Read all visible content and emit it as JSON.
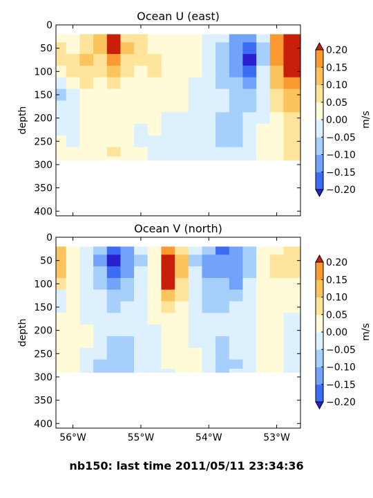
{
  "footer": "nb150: last time 2011/05/11 23:34:36",
  "colorbar": {
    "label": "m/s",
    "ticks": [
      "0.20",
      "0.15",
      "0.10",
      "0.05",
      "0.00",
      "−0.05",
      "−0.10",
      "−0.15",
      "−0.20"
    ],
    "levels": [
      -0.2,
      -0.15,
      -0.1,
      -0.05,
      0.0,
      0.05,
      0.1,
      0.15,
      0.2
    ],
    "colors": [
      "#2a1fd0",
      "#3c6cf4",
      "#71a3fb",
      "#a7cffc",
      "#ddf0fd",
      "#fffbd8",
      "#fde49a",
      "#fcc45c",
      "#fb9a31",
      "#e8511b",
      "#c81f0a"
    ],
    "extend_low_color": "#2a1fd0",
    "extend_high_color": "#c81f0a"
  },
  "chart_data": [
    {
      "type": "heatmap",
      "title": "Ocean U (east)",
      "ylabel": "depth",
      "xlabel": "",
      "xlim": [
        -56.25,
        -52.65
      ],
      "ylim": [
        410,
        0
      ],
      "xticks": [
        -56,
        -55,
        -54,
        -53
      ],
      "xtick_labels": [
        "56°W",
        "55°W",
        "54°W",
        "53°W"
      ],
      "yticks": [
        0,
        50,
        100,
        150,
        200,
        250,
        300,
        350,
        400
      ],
      "ytick_labels": [
        "0",
        "50",
        "100",
        "150",
        "200",
        "250",
        "300",
        "350",
        "400"
      ],
      "show_xticklabels": false,
      "depth_levels": [
        25,
        50,
        75,
        100,
        125,
        150,
        175,
        200,
        225,
        250,
        275,
        290
      ],
      "longitudes": [
        -56.2,
        -56.0,
        -55.8,
        -55.6,
        -55.4,
        -55.2,
        -55.0,
        -54.8,
        -54.6,
        -54.4,
        -54.2,
        -54.0,
        -53.8,
        -53.6,
        -53.4,
        -53.2,
        -53.0,
        -52.8
      ],
      "values": [
        [
          0.02,
          0.0,
          0.05,
          0.1,
          0.2,
          0.08,
          0.05,
          0.03,
          0.02,
          0.02,
          0.0,
          -0.05,
          -0.05,
          -0.12,
          -0.15,
          -0.05,
          0.15,
          0.22
        ],
        [
          0.05,
          0.03,
          0.08,
          0.12,
          0.22,
          0.1,
          0.05,
          0.04,
          0.03,
          0.02,
          0.0,
          -0.05,
          -0.08,
          -0.15,
          -0.2,
          -0.08,
          0.18,
          0.22
        ],
        [
          0.05,
          0.08,
          0.1,
          0.08,
          0.15,
          0.08,
          0.05,
          0.06,
          0.04,
          0.03,
          0.0,
          -0.03,
          -0.08,
          -0.12,
          -0.22,
          -0.08,
          0.15,
          0.22
        ],
        [
          0.02,
          0.05,
          0.08,
          0.05,
          0.1,
          0.05,
          0.03,
          0.08,
          0.03,
          0.02,
          0.0,
          -0.03,
          -0.1,
          -0.12,
          -0.18,
          -0.05,
          0.12,
          0.2
        ],
        [
          -0.05,
          0.02,
          0.05,
          0.02,
          0.05,
          0.03,
          0.02,
          0.04,
          0.02,
          0.0,
          -0.02,
          -0.05,
          -0.08,
          -0.1,
          -0.12,
          -0.03,
          0.1,
          0.15
        ],
        [
          -0.08,
          -0.03,
          0.02,
          0.0,
          0.02,
          0.03,
          0.02,
          0.02,
          0.01,
          0.0,
          -0.02,
          -0.03,
          -0.05,
          -0.1,
          -0.08,
          -0.02,
          0.08,
          0.12
        ],
        [
          -0.05,
          -0.02,
          0.02,
          0.01,
          0.03,
          0.02,
          0.01,
          0.01,
          0.0,
          0.0,
          -0.01,
          -0.02,
          -0.05,
          -0.08,
          -0.06,
          -0.02,
          0.05,
          0.1
        ],
        [
          -0.03,
          -0.02,
          0.0,
          0.0,
          0.02,
          0.01,
          0.0,
          0.0,
          -0.01,
          -0.01,
          -0.02,
          -0.03,
          -0.06,
          -0.1,
          -0.05,
          -0.01,
          0.04,
          0.08
        ],
        [
          -0.02,
          -0.01,
          0.0,
          0.01,
          0.02,
          0.0,
          -0.01,
          0.0,
          -0.01,
          -0.02,
          -0.03,
          -0.03,
          -0.08,
          -0.1,
          -0.04,
          0.0,
          0.03,
          0.06
        ],
        [
          0.0,
          -0.01,
          0.0,
          0.01,
          0.04,
          0.01,
          -0.01,
          -0.01,
          -0.02,
          -0.03,
          -0.03,
          -0.04,
          -0.06,
          -0.08,
          -0.03,
          0.0,
          0.02,
          0.05
        ],
        [
          0.02,
          0.01,
          0.02,
          0.01,
          0.05,
          0.02,
          0.0,
          -0.02,
          -0.03,
          -0.03,
          -0.02,
          -0.03,
          -0.05,
          -0.05,
          -0.02,
          0.0,
          0.02,
          0.06
        ],
        [
          0.02,
          0.01,
          0.01,
          0.0,
          0.02,
          0.02,
          0.0,
          -0.02,
          -0.03,
          -0.03,
          -0.02,
          -0.03,
          -0.04,
          -0.03,
          -0.02,
          0.0,
          0.02,
          0.05
        ]
      ]
    },
    {
      "type": "heatmap",
      "title": "Ocean V (north)",
      "ylabel": "depth",
      "xlabel": "",
      "xlim": [
        -56.25,
        -52.65
      ],
      "ylim": [
        410,
        0
      ],
      "xticks": [
        -56,
        -55,
        -54,
        -53
      ],
      "xtick_labels": [
        "56°W",
        "55°W",
        "54°W",
        "53°W"
      ],
      "yticks": [
        0,
        50,
        100,
        150,
        200,
        250,
        300,
        350,
        400
      ],
      "ytick_labels": [
        "0",
        "50",
        "100",
        "150",
        "200",
        "250",
        "300",
        "350",
        "400"
      ],
      "show_xticklabels": true,
      "depth_levels": [
        25,
        50,
        75,
        100,
        125,
        150,
        175,
        200,
        225,
        250,
        275,
        290
      ],
      "longitudes": [
        -56.2,
        -56.0,
        -55.8,
        -55.6,
        -55.4,
        -55.2,
        -55.0,
        -54.8,
        -54.6,
        -54.4,
        -54.2,
        -54.0,
        -53.8,
        -53.6,
        -53.4,
        -53.2,
        -53.0,
        -52.8
      ],
      "values": [
        [
          0.1,
          0.02,
          -0.03,
          -0.1,
          -0.2,
          -0.12,
          -0.05,
          0.02,
          0.15,
          0.08,
          -0.05,
          -0.1,
          -0.18,
          -0.12,
          -0.1,
          0.02,
          0.04,
          0.06
        ],
        [
          0.12,
          0.03,
          -0.05,
          -0.12,
          -0.22,
          -0.15,
          -0.06,
          0.02,
          0.2,
          0.1,
          -0.06,
          -0.12,
          -0.15,
          -0.15,
          -0.08,
          0.02,
          0.05,
          0.08
        ],
        [
          0.1,
          0.04,
          -0.04,
          -0.1,
          -0.18,
          -0.12,
          -0.05,
          0.03,
          0.22,
          0.1,
          -0.05,
          -0.12,
          -0.12,
          -0.15,
          -0.06,
          0.03,
          0.05,
          0.06
        ],
        [
          0.05,
          0.03,
          -0.03,
          -0.08,
          -0.12,
          -0.1,
          -0.05,
          0.02,
          0.2,
          0.08,
          -0.03,
          -0.1,
          -0.1,
          -0.12,
          -0.04,
          0.02,
          0.03,
          0.04
        ],
        [
          -0.02,
          0.02,
          -0.02,
          -0.05,
          -0.08,
          -0.06,
          -0.03,
          0.01,
          0.1,
          0.05,
          -0.02,
          -0.08,
          -0.08,
          -0.08,
          -0.03,
          0.01,
          0.02,
          0.02
        ],
        [
          -0.03,
          0.0,
          -0.02,
          -0.04,
          -0.06,
          -0.05,
          -0.02,
          0.0,
          0.05,
          0.03,
          -0.02,
          -0.06,
          -0.06,
          -0.05,
          -0.02,
          0.0,
          0.01,
          0.0
        ],
        [
          0.02,
          0.03,
          -0.01,
          -0.03,
          -0.05,
          -0.04,
          -0.02,
          0.0,
          0.03,
          0.02,
          -0.02,
          -0.05,
          -0.04,
          -0.04,
          -0.02,
          0.0,
          0.02,
          -0.02
        ],
        [
          0.03,
          0.03,
          0.0,
          -0.03,
          -0.05,
          -0.05,
          -0.02,
          -0.01,
          0.02,
          0.03,
          -0.02,
          -0.04,
          -0.05,
          -0.03,
          -0.01,
          0.0,
          0.02,
          -0.02
        ],
        [
          0.02,
          0.02,
          0.0,
          -0.04,
          -0.06,
          -0.06,
          -0.03,
          -0.01,
          0.02,
          0.04,
          -0.01,
          -0.03,
          -0.06,
          -0.04,
          -0.01,
          0.01,
          0.03,
          -0.03
        ],
        [
          0.03,
          0.01,
          -0.01,
          -0.05,
          -0.07,
          -0.07,
          -0.04,
          -0.02,
          0.01,
          0.03,
          0.0,
          -0.03,
          -0.07,
          -0.05,
          -0.02,
          0.01,
          0.03,
          -0.03
        ],
        [
          0.02,
          0.0,
          -0.02,
          -0.06,
          -0.08,
          -0.07,
          -0.05,
          -0.02,
          0.0,
          0.02,
          0.0,
          -0.03,
          -0.07,
          -0.06,
          -0.03,
          0.0,
          0.04,
          -0.02
        ],
        [
          0.02,
          0.0,
          -0.03,
          -0.06,
          -0.07,
          -0.06,
          -0.04,
          -0.02,
          -0.01,
          0.01,
          0.0,
          -0.02,
          -0.06,
          -0.05,
          -0.02,
          0.0,
          0.03,
          -0.01
        ]
      ]
    }
  ]
}
